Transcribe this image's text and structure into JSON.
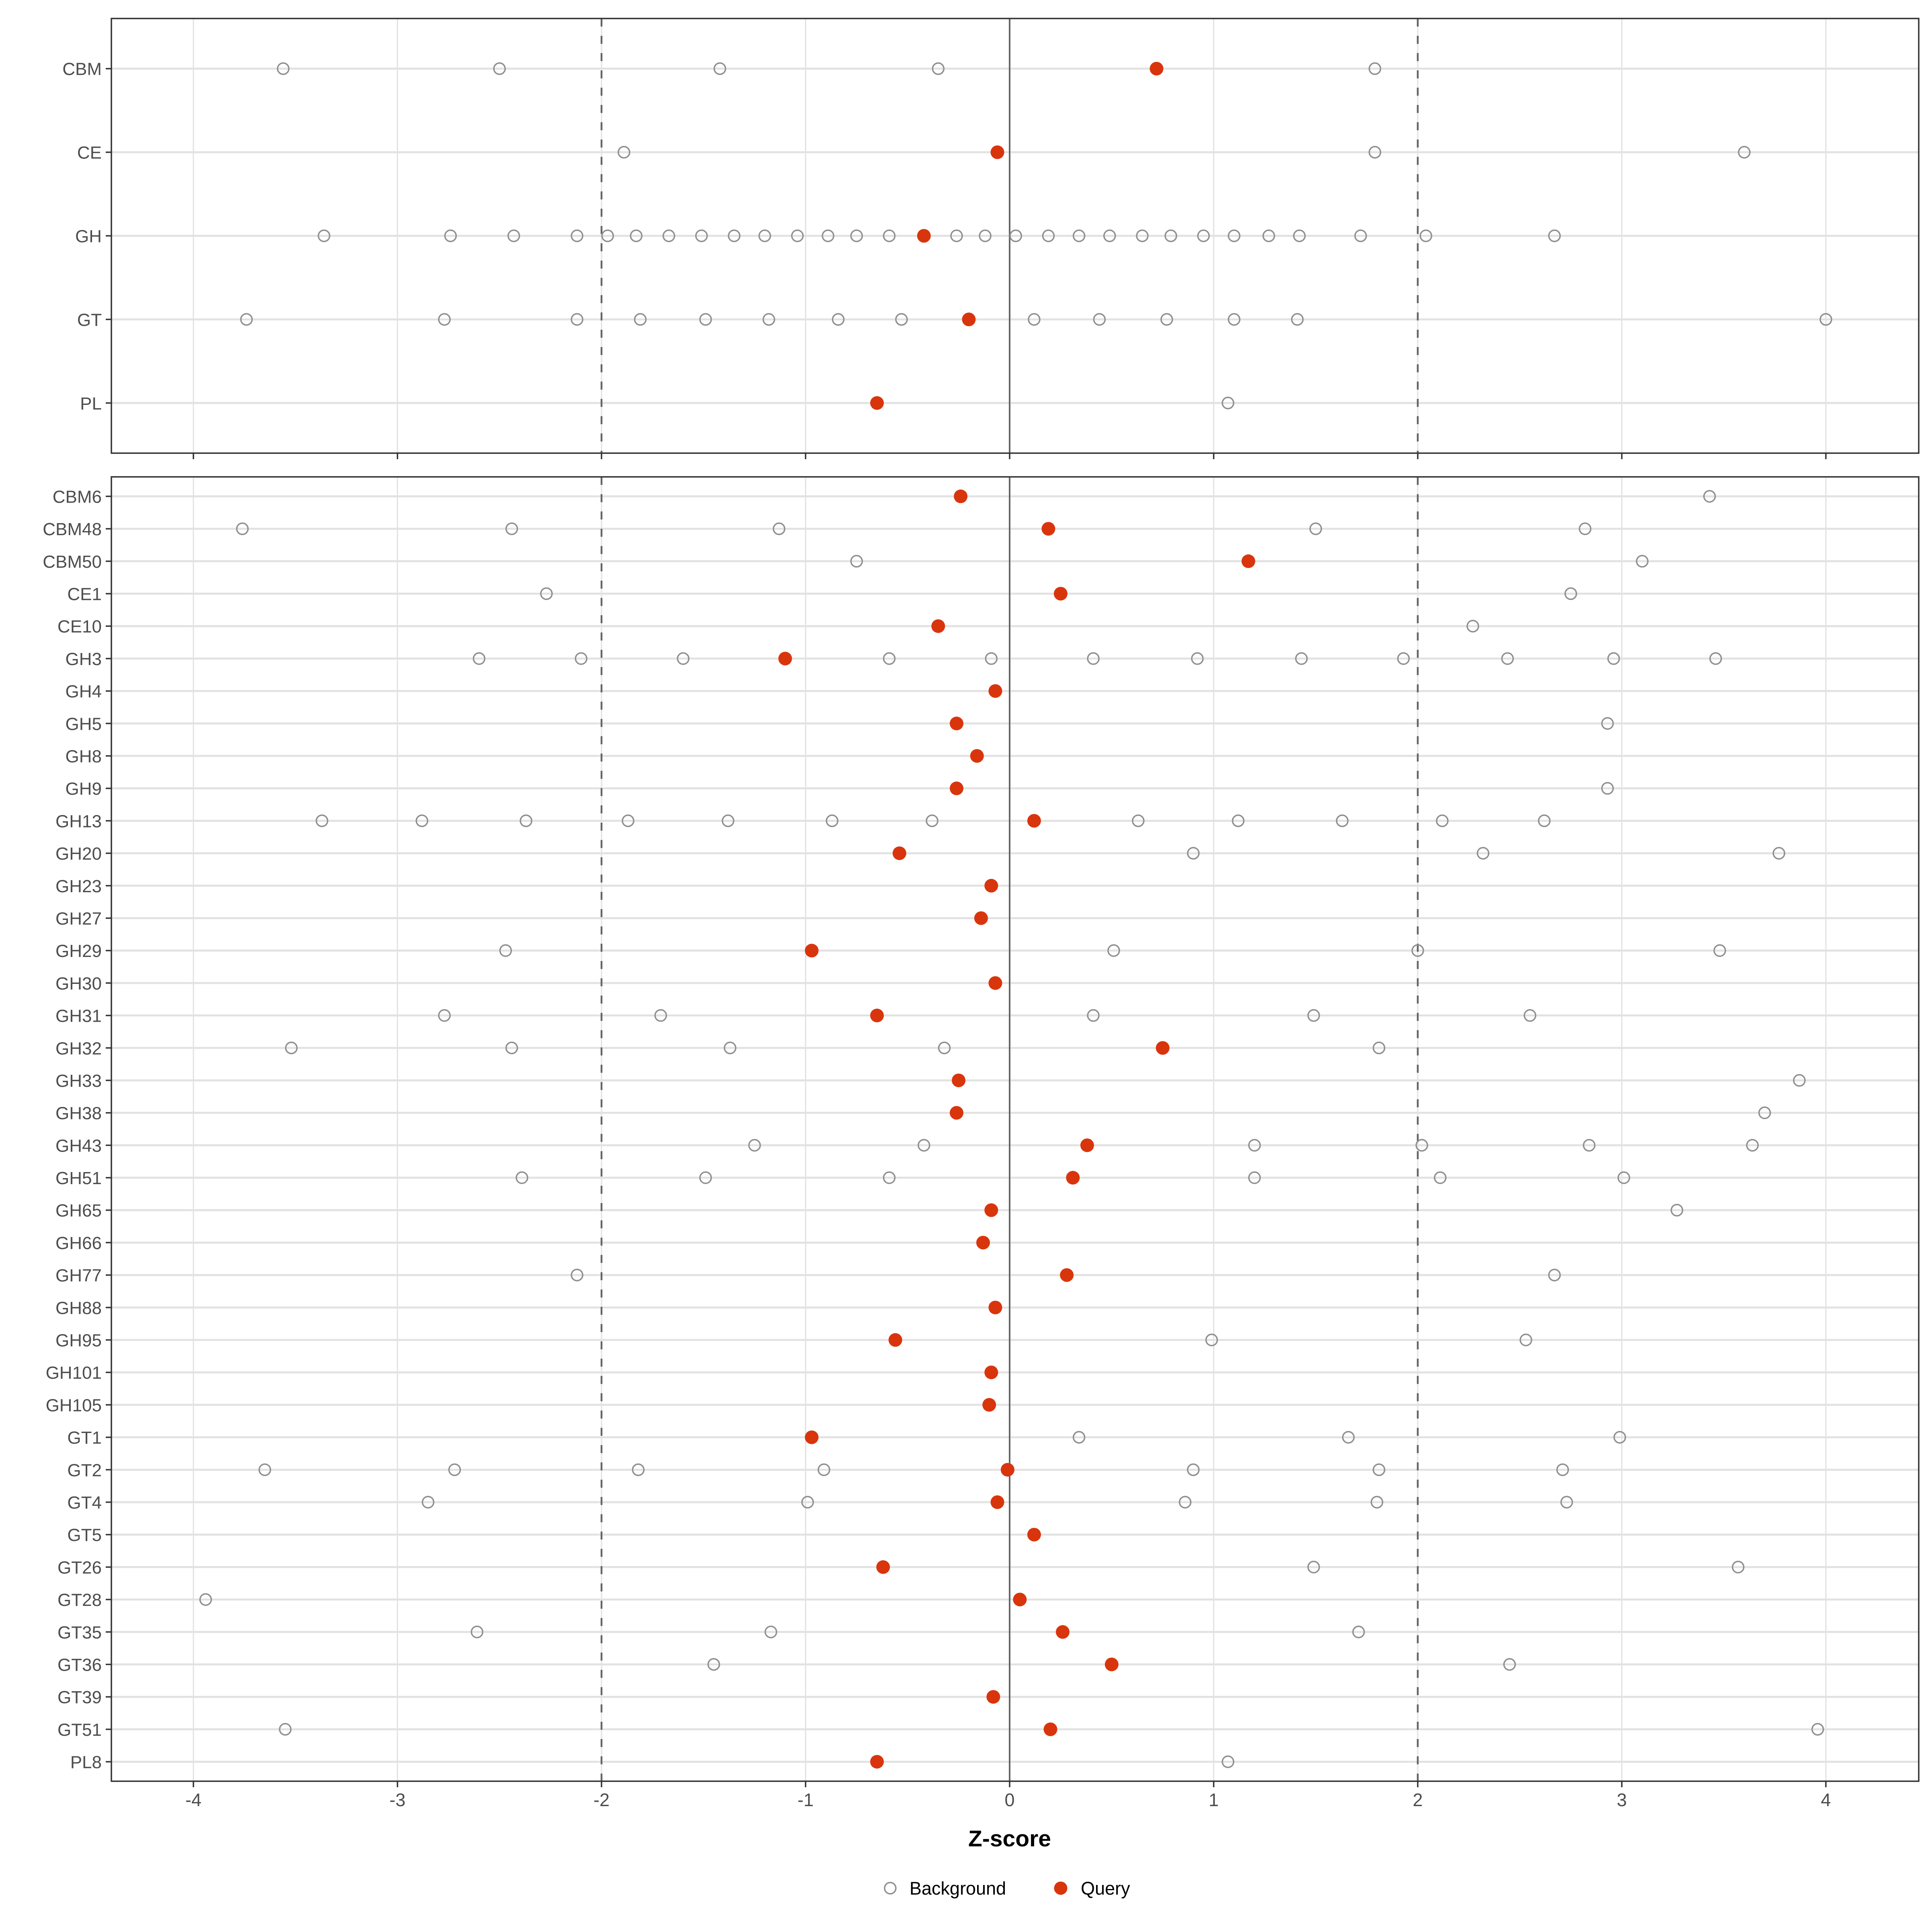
{
  "axis": {
    "title": "Z-score",
    "ticks": [
      -4,
      -3,
      -2,
      -1,
      0,
      1,
      2,
      3,
      4
    ],
    "tick_labels": [
      "-4",
      "-3",
      "-2",
      "-1",
      "0",
      "1",
      "2",
      "3",
      "4"
    ],
    "range": [
      -4.4,
      4.45
    ]
  },
  "legend": {
    "items": [
      {
        "label": "Background",
        "marker": "open-circle"
      },
      {
        "label": "Query",
        "marker": "filled-circle"
      }
    ]
  },
  "colors": {
    "query": "#D9350D",
    "background_stroke": "#8F8F8F",
    "grid": "#E2E2E2",
    "ref_line": "#666666",
    "panel_border": "#333333",
    "axis_text": "#4D4D4D",
    "title_text": "#000000"
  },
  "guides": {
    "zero_line": 0,
    "dashed_lines": [
      -2,
      2
    ]
  },
  "chart_data": {
    "type": "scatter",
    "subtype": "dot-plot-two-panels",
    "xlabel": "Z-score",
    "xlim": [
      -4.4,
      4.45
    ],
    "grid": "on",
    "legend_position": "bottom",
    "panels": [
      {
        "name": "top-summary-panel",
        "rows": [
          {
            "label": "CBM",
            "query": 0.72,
            "background": [
              -3.56,
              -2.5,
              -1.42,
              -0.35,
              1.79
            ]
          },
          {
            "label": "CE",
            "query": -0.06,
            "background": [
              -1.89,
              1.79,
              3.6
            ]
          },
          {
            "label": "GH",
            "query": -0.42,
            "background": [
              -3.36,
              -2.74,
              -2.43,
              -2.12,
              -1.97,
              -1.83,
              -1.67,
              -1.51,
              -1.35,
              -1.2,
              -1.04,
              -0.89,
              -0.75,
              -0.59,
              -0.26,
              -0.12,
              0.03,
              0.19,
              0.34,
              0.49,
              0.65,
              0.79,
              0.95,
              1.1,
              1.27,
              1.42,
              1.72,
              2.04,
              2.67
            ]
          },
          {
            "label": "GT",
            "query": -0.2,
            "background": [
              -3.74,
              -2.77,
              -2.12,
              -1.81,
              -1.49,
              -1.18,
              -0.84,
              -0.53,
              0.12,
              0.44,
              0.77,
              1.1,
              1.41,
              4.0
            ]
          },
          {
            "label": "PL",
            "query": -0.65,
            "background": [
              1.07
            ]
          }
        ]
      },
      {
        "name": "bottom-family-panel",
        "rows": [
          {
            "label": "CBM6",
            "query": -0.24,
            "background": [
              3.43
            ]
          },
          {
            "label": "CBM48",
            "query": 0.19,
            "background": [
              -3.76,
              -2.44,
              -1.13,
              1.5,
              2.82
            ]
          },
          {
            "label": "CBM50",
            "query": 1.17,
            "background": [
              -0.75,
              3.1
            ]
          },
          {
            "label": "CE1",
            "query": 0.25,
            "background": [
              -2.27,
              2.75
            ]
          },
          {
            "label": "CE10",
            "query": -0.35,
            "background": [
              2.27
            ]
          },
          {
            "label": "GH3",
            "query": -1.1,
            "background": [
              -2.6,
              -2.1,
              -1.6,
              -0.59,
              -0.09,
              0.41,
              0.92,
              1.43,
              1.93,
              2.44,
              2.96,
              3.46
            ]
          },
          {
            "label": "GH4",
            "query": -0.07,
            "background": []
          },
          {
            "label": "GH5",
            "query": -0.26,
            "background": [
              2.93
            ]
          },
          {
            "label": "GH8",
            "query": -0.16,
            "background": []
          },
          {
            "label": "GH9",
            "query": -0.26,
            "background": [
              2.93
            ]
          },
          {
            "label": "GH13",
            "query": 0.12,
            "background": [
              -3.37,
              -2.88,
              -2.37,
              -1.87,
              -1.38,
              -0.87,
              -0.38,
              0.63,
              1.12,
              1.63,
              2.12,
              2.62
            ]
          },
          {
            "label": "GH20",
            "query": -0.54,
            "background": [
              0.9,
              2.32,
              3.77
            ]
          },
          {
            "label": "GH23",
            "query": -0.09,
            "background": []
          },
          {
            "label": "GH27",
            "query": -0.14,
            "background": []
          },
          {
            "label": "GH29",
            "query": -0.97,
            "background": [
              -2.47,
              0.51,
              2.0,
              3.48
            ]
          },
          {
            "label": "GH30",
            "query": -0.07,
            "background": []
          },
          {
            "label": "GH31",
            "query": -0.65,
            "background": [
              -2.77,
              -1.71,
              0.41,
              1.49,
              2.55
            ]
          },
          {
            "label": "GH32",
            "query": 0.75,
            "background": [
              -3.52,
              -2.44,
              -1.37,
              -0.32,
              1.81
            ]
          },
          {
            "label": "GH33",
            "query": -0.25,
            "background": [
              3.87
            ]
          },
          {
            "label": "GH38",
            "query": -0.26,
            "background": [
              3.7
            ]
          },
          {
            "label": "GH43",
            "query": 0.38,
            "background": [
              -1.25,
              -0.42,
              1.2,
              2.02,
              2.84,
              3.64
            ]
          },
          {
            "label": "GH51",
            "query": 0.31,
            "background": [
              -2.39,
              -1.49,
              -0.59,
              1.2,
              2.11,
              3.01
            ]
          },
          {
            "label": "GH65",
            "query": -0.09,
            "background": [
              3.27
            ]
          },
          {
            "label": "GH66",
            "query": -0.13,
            "background": []
          },
          {
            "label": "GH77",
            "query": 0.28,
            "background": [
              -2.12,
              2.67
            ]
          },
          {
            "label": "GH88",
            "query": -0.07,
            "background": []
          },
          {
            "label": "GH95",
            "query": -0.56,
            "background": [
              0.99,
              2.53
            ]
          },
          {
            "label": "GH101",
            "query": -0.09,
            "background": []
          },
          {
            "label": "GH105",
            "query": -0.1,
            "background": []
          },
          {
            "label": "GT1",
            "query": -0.97,
            "background": [
              0.34,
              1.66,
              2.99
            ]
          },
          {
            "label": "GT2",
            "query": -0.01,
            "background": [
              -3.65,
              -2.72,
              -1.82,
              -0.91,
              0.9,
              1.81,
              2.71
            ]
          },
          {
            "label": "GT4",
            "query": -0.06,
            "background": [
              -2.85,
              -0.99,
              0.86,
              1.8,
              2.73
            ]
          },
          {
            "label": "GT5",
            "query": 0.12,
            "background": []
          },
          {
            "label": "GT26",
            "query": -0.62,
            "background": [
              1.49,
              3.57
            ]
          },
          {
            "label": "GT28",
            "query": 0.05,
            "background": [
              -3.94
            ]
          },
          {
            "label": "GT35",
            "query": 0.26,
            "background": [
              -2.61,
              -1.17,
              1.71
            ]
          },
          {
            "label": "GT36",
            "query": 0.5,
            "background": [
              -1.45,
              2.45
            ]
          },
          {
            "label": "GT39",
            "query": -0.08,
            "background": []
          },
          {
            "label": "GT51",
            "query": 0.2,
            "background": [
              -3.55,
              3.96
            ]
          },
          {
            "label": "PL8",
            "query": -0.65,
            "background": [
              1.07
            ]
          }
        ]
      }
    ]
  }
}
